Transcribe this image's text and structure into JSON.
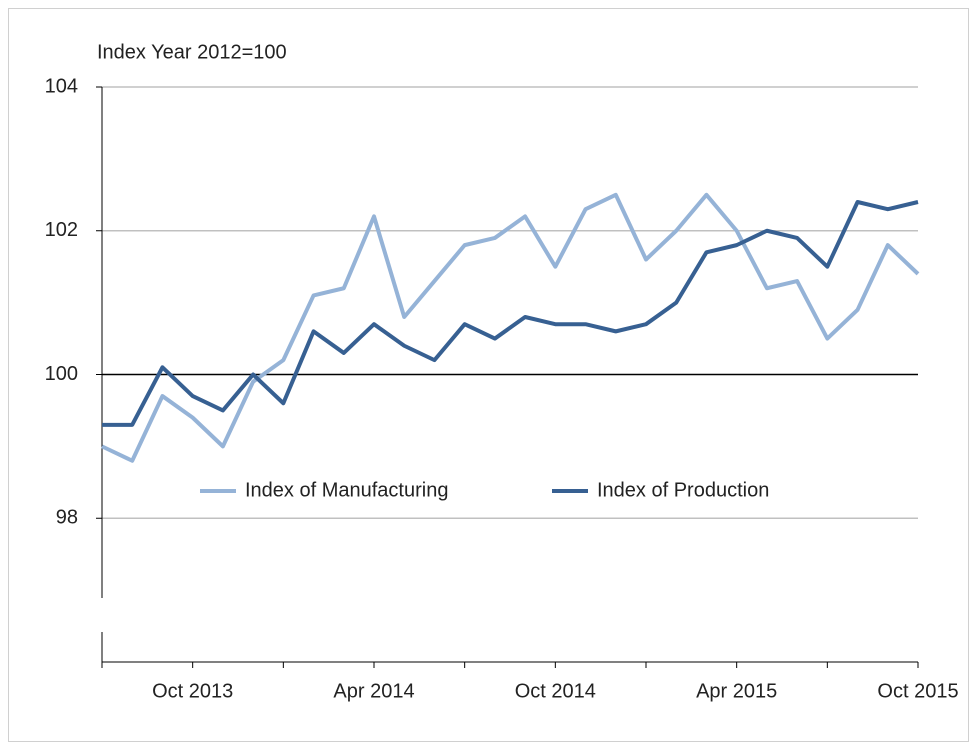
{
  "chart_data": {
    "type": "line",
    "title": "Index Year 2012=100",
    "categories": [
      null,
      null,
      null,
      "Oct 2013",
      null,
      null,
      null,
      null,
      null,
      "Apr 2014",
      null,
      null,
      null,
      null,
      null,
      "Oct 2014",
      null,
      null,
      null,
      null,
      null,
      "Apr 2015",
      null,
      null,
      null,
      null,
      null,
      "Oct 2015"
    ],
    "series": [
      {
        "name": "Index of Manufacturing",
        "color": "#95b3d7",
        "values": [
          99.0,
          98.8,
          99.7,
          99.4,
          99.0,
          99.9,
          100.2,
          101.1,
          101.2,
          102.2,
          100.8,
          101.3,
          101.8,
          101.9,
          102.2,
          101.5,
          102.3,
          102.5,
          101.6,
          102.0,
          102.5,
          102.0,
          101.2,
          101.3,
          100.5,
          100.9,
          101.8,
          101.4
        ]
      },
      {
        "name": "Index of Production",
        "color": "#376092",
        "values": [
          99.3,
          99.3,
          100.1,
          99.7,
          99.5,
          100.0,
          99.6,
          100.6,
          100.3,
          100.7,
          100.4,
          100.2,
          100.7,
          100.5,
          100.8,
          100.7,
          100.7,
          100.6,
          100.7,
          101.0,
          101.7,
          101.8,
          102.0,
          101.9,
          101.5,
          102.4,
          102.3,
          102.4
        ]
      }
    ],
    "ylim": [
      96,
      104
    ],
    "yticks": [
      98,
      100,
      102,
      104
    ],
    "reference_line": 100,
    "grid": true
  }
}
